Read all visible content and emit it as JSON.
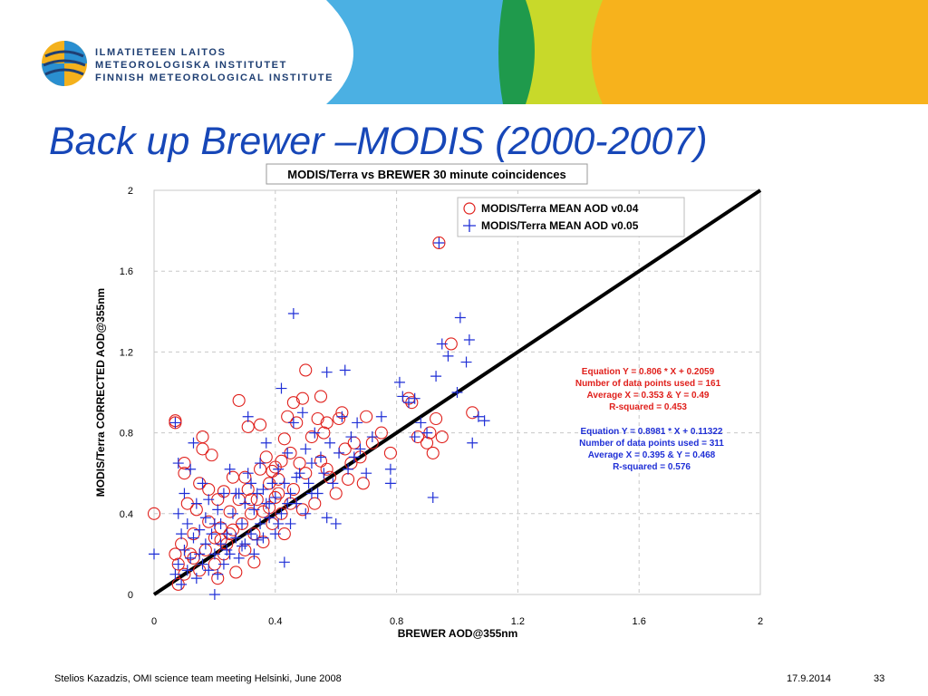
{
  "logo": {
    "line1": "ILMATIETEEN LAITOS",
    "line2": "METEOROLOGISKA INSTITUTET",
    "line3": "FINNISH METEOROLOGICAL INSTITUTE"
  },
  "slide": {
    "title": "Back up Brewer –MODIS (2000-2007)"
  },
  "colors": {
    "red": "#e0201c",
    "blue": "#1f2fd6",
    "title_blue": "#1747b8"
  },
  "footer": {
    "left": "Stelios Kazadzis, OMI science team meeting Helsinki, June 2008",
    "date": "17.9.2014",
    "page": "33"
  },
  "chart_data": {
    "type": "scatter",
    "title": "MODIS/Terra vs BREWER 30 minute coincidences",
    "xlabel": "BREWER AOD@355nm",
    "ylabel": "MODIS/Terra CORRECTED AOD@355nm",
    "xlim": [
      0,
      2
    ],
    "ylim": [
      0,
      2
    ],
    "xticks": [
      "0",
      "0.4",
      "0.8",
      "1.2",
      "1.6",
      "2"
    ],
    "yticks": [
      "0",
      "0.4",
      "0.8",
      "1.2",
      "1.6",
      "2"
    ],
    "grid": true,
    "legend_position": "top-right",
    "reference_line": {
      "x": [
        0,
        2
      ],
      "y": [
        0,
        2
      ]
    },
    "annotations": {
      "red": [
        "Equation Y = 0.806 * X + 0.2059",
        "Number of data points used = 161",
        "Average X = 0.353 & Y = 0.49",
        "R-squared = 0.453"
      ],
      "blue": [
        "Equation Y = 0.8981 * X + 0.11322",
        "Number of data points used = 311",
        "Average X = 0.395 & Y = 0.468",
        "R-squared = 0.576"
      ]
    },
    "series": [
      {
        "name": "MODIS/Terra MEAN AOD v0.04",
        "marker": "circle",
        "color": "#e0201c",
        "points": [
          [
            0.0,
            0.4
          ],
          [
            0.07,
            0.86
          ],
          [
            0.07,
            0.85
          ],
          [
            0.07,
            0.2
          ],
          [
            0.08,
            0.05
          ],
          [
            0.08,
            0.15
          ],
          [
            0.09,
            0.25
          ],
          [
            0.1,
            0.6
          ],
          [
            0.1,
            0.65
          ],
          [
            0.1,
            0.1
          ],
          [
            0.11,
            0.45
          ],
          [
            0.12,
            0.2
          ],
          [
            0.13,
            0.18
          ],
          [
            0.13,
            0.3
          ],
          [
            0.14,
            0.42
          ],
          [
            0.15,
            0.55
          ],
          [
            0.15,
            0.12
          ],
          [
            0.16,
            0.78
          ],
          [
            0.16,
            0.72
          ],
          [
            0.17,
            0.22
          ],
          [
            0.18,
            0.36
          ],
          [
            0.18,
            0.52
          ],
          [
            0.19,
            0.69
          ],
          [
            0.2,
            0.15
          ],
          [
            0.2,
            0.28
          ],
          [
            0.21,
            0.47
          ],
          [
            0.21,
            0.08
          ],
          [
            0.22,
            0.33
          ],
          [
            0.23,
            0.51
          ],
          [
            0.23,
            0.2
          ],
          [
            0.24,
            0.25
          ],
          [
            0.25,
            0.41
          ],
          [
            0.25,
            0.3
          ],
          [
            0.26,
            0.58
          ],
          [
            0.27,
            0.11
          ],
          [
            0.28,
            0.96
          ],
          [
            0.28,
            0.47
          ],
          [
            0.29,
            0.35
          ],
          [
            0.3,
            0.22
          ],
          [
            0.3,
            0.58
          ],
          [
            0.31,
            0.83
          ],
          [
            0.31,
            0.52
          ],
          [
            0.32,
            0.4
          ],
          [
            0.33,
            0.16
          ],
          [
            0.33,
            0.3
          ],
          [
            0.34,
            0.47
          ],
          [
            0.35,
            0.62
          ],
          [
            0.35,
            0.84
          ],
          [
            0.36,
            0.26
          ],
          [
            0.37,
            0.68
          ],
          [
            0.38,
            0.43
          ],
          [
            0.38,
            0.55
          ],
          [
            0.39,
            0.35
          ],
          [
            0.4,
            0.63
          ],
          [
            0.4,
            0.48
          ],
          [
            0.41,
            0.5
          ],
          [
            0.41,
            0.57
          ],
          [
            0.42,
            0.4
          ],
          [
            0.43,
            0.77
          ],
          [
            0.43,
            0.3
          ],
          [
            0.44,
            0.88
          ],
          [
            0.45,
            0.7
          ],
          [
            0.45,
            0.45
          ],
          [
            0.46,
            0.95
          ],
          [
            0.46,
            0.52
          ],
          [
            0.47,
            0.85
          ],
          [
            0.48,
            0.65
          ],
          [
            0.49,
            0.97
          ],
          [
            0.49,
            0.42
          ],
          [
            0.5,
            1.11
          ],
          [
            0.5,
            0.6
          ],
          [
            0.52,
            0.78
          ],
          [
            0.53,
            0.45
          ],
          [
            0.54,
            0.87
          ],
          [
            0.55,
            0.98
          ],
          [
            0.55,
            0.66
          ],
          [
            0.56,
            0.8
          ],
          [
            0.57,
            0.62
          ],
          [
            0.57,
            0.85
          ],
          [
            0.58,
            0.58
          ],
          [
            0.6,
            0.5
          ],
          [
            0.61,
            0.87
          ],
          [
            0.62,
            0.9
          ],
          [
            0.63,
            0.72
          ],
          [
            0.64,
            0.57
          ],
          [
            0.65,
            0.65
          ],
          [
            0.66,
            0.75
          ],
          [
            0.68,
            0.68
          ],
          [
            0.69,
            0.55
          ],
          [
            0.7,
            0.88
          ],
          [
            0.72,
            0.75
          ],
          [
            0.75,
            0.8
          ],
          [
            0.78,
            0.7
          ],
          [
            0.84,
            0.97
          ],
          [
            0.85,
            0.95
          ],
          [
            0.87,
            0.78
          ],
          [
            0.9,
            0.75
          ],
          [
            0.91,
            0.8
          ],
          [
            0.92,
            0.7
          ],
          [
            0.93,
            0.87
          ],
          [
            0.94,
            1.74
          ],
          [
            0.95,
            0.78
          ],
          [
            0.98,
            1.24
          ],
          [
            1.05,
            0.9
          ],
          [
            0.22,
            0.27
          ],
          [
            0.26,
            0.32
          ],
          [
            0.32,
            0.47
          ],
          [
            0.36,
            0.41
          ],
          [
            0.39,
            0.61
          ],
          [
            0.42,
            0.66
          ]
        ]
      },
      {
        "name": "MODIS/Terra MEAN AOD v0.05",
        "marker": "plus",
        "color": "#1f2fd6",
        "points": [
          [
            0.0,
            0.2
          ],
          [
            0.07,
            0.85
          ],
          [
            0.07,
            0.1
          ],
          [
            0.08,
            0.65
          ],
          [
            0.08,
            0.4
          ],
          [
            0.08,
            0.15
          ],
          [
            0.09,
            0.05
          ],
          [
            0.09,
            0.3
          ],
          [
            0.1,
            0.5
          ],
          [
            0.1,
            0.22
          ],
          [
            0.11,
            0.35
          ],
          [
            0.11,
            0.12
          ],
          [
            0.12,
            0.18
          ],
          [
            0.12,
            0.62
          ],
          [
            0.13,
            0.28
          ],
          [
            0.13,
            0.75
          ],
          [
            0.14,
            0.45
          ],
          [
            0.14,
            0.08
          ],
          [
            0.15,
            0.32
          ],
          [
            0.15,
            0.2
          ],
          [
            0.16,
            0.55
          ],
          [
            0.16,
            0.15
          ],
          [
            0.17,
            0.38
          ],
          [
            0.17,
            0.25
          ],
          [
            0.18,
            0.12
          ],
          [
            0.18,
            0.47
          ],
          [
            0.19,
            0.3
          ],
          [
            0.2,
            0.0
          ],
          [
            0.2,
            0.2
          ],
          [
            0.21,
            0.42
          ],
          [
            0.21,
            0.1
          ],
          [
            0.22,
            0.35
          ],
          [
            0.22,
            0.25
          ],
          [
            0.23,
            0.5
          ],
          [
            0.23,
            0.15
          ],
          [
            0.24,
            0.3
          ],
          [
            0.25,
            0.62
          ],
          [
            0.25,
            0.2
          ],
          [
            0.26,
            0.4
          ],
          [
            0.27,
            0.28
          ],
          [
            0.28,
            0.5
          ],
          [
            0.28,
            0.18
          ],
          [
            0.29,
            0.35
          ],
          [
            0.3,
            0.45
          ],
          [
            0.3,
            0.25
          ],
          [
            0.31,
            0.88
          ],
          [
            0.31,
            0.6
          ],
          [
            0.32,
            0.3
          ],
          [
            0.33,
            0.42
          ],
          [
            0.33,
            0.2
          ],
          [
            0.34,
            0.5
          ],
          [
            0.35,
            0.35
          ],
          [
            0.35,
            0.65
          ],
          [
            0.36,
            0.28
          ],
          [
            0.37,
            0.45
          ],
          [
            0.37,
            0.75
          ],
          [
            0.38,
            0.38
          ],
          [
            0.39,
            0.55
          ],
          [
            0.4,
            0.3
          ],
          [
            0.4,
            0.48
          ],
          [
            0.41,
            0.62
          ],
          [
            0.42,
            1.02
          ],
          [
            0.42,
            0.4
          ],
          [
            0.43,
            0.16
          ],
          [
            0.43,
            0.55
          ],
          [
            0.44,
            0.7
          ],
          [
            0.45,
            0.35
          ],
          [
            0.45,
            0.5
          ],
          [
            0.46,
            1.39
          ],
          [
            0.46,
            0.85
          ],
          [
            0.47,
            0.45
          ],
          [
            0.48,
            0.6
          ],
          [
            0.49,
            0.9
          ],
          [
            0.5,
            0.4
          ],
          [
            0.5,
            0.72
          ],
          [
            0.51,
            0.55
          ],
          [
            0.52,
            0.65
          ],
          [
            0.53,
            0.8
          ],
          [
            0.54,
            0.5
          ],
          [
            0.55,
            0.68
          ],
          [
            0.56,
            0.6
          ],
          [
            0.57,
            0.38
          ],
          [
            0.57,
            1.1
          ],
          [
            0.58,
            0.75
          ],
          [
            0.59,
            0.55
          ],
          [
            0.6,
            0.35
          ],
          [
            0.61,
            0.7
          ],
          [
            0.62,
            0.88
          ],
          [
            0.63,
            1.11
          ],
          [
            0.64,
            0.62
          ],
          [
            0.65,
            0.78
          ],
          [
            0.66,
            0.68
          ],
          [
            0.67,
            0.85
          ],
          [
            0.68,
            0.72
          ],
          [
            0.7,
            0.6
          ],
          [
            0.72,
            0.78
          ],
          [
            0.75,
            0.88
          ],
          [
            0.78,
            0.62
          ],
          [
            0.78,
            0.55
          ],
          [
            0.81,
            1.05
          ],
          [
            0.82,
            0.98
          ],
          [
            0.84,
            0.95
          ],
          [
            0.86,
            0.97
          ],
          [
            0.86,
            0.78
          ],
          [
            0.88,
            0.85
          ],
          [
            0.9,
            0.8
          ],
          [
            0.92,
            0.48
          ],
          [
            0.93,
            1.08
          ],
          [
            0.94,
            1.74
          ],
          [
            0.95,
            1.24
          ],
          [
            0.97,
            1.18
          ],
          [
            1.0,
            1.0
          ],
          [
            1.01,
            1.37
          ],
          [
            1.03,
            1.15
          ],
          [
            1.04,
            1.26
          ],
          [
            1.05,
            0.75
          ],
          [
            1.07,
            0.88
          ],
          [
            1.09,
            0.86
          ],
          [
            0.2,
            0.35
          ],
          [
            0.24,
            0.22
          ],
          [
            0.27,
            0.5
          ],
          [
            0.29,
            0.24
          ],
          [
            0.32,
            0.55
          ],
          [
            0.34,
            0.27
          ],
          [
            0.36,
            0.52
          ],
          [
            0.38,
            0.45
          ],
          [
            0.41,
            0.35
          ],
          [
            0.44,
            0.45
          ],
          [
            0.47,
            0.58
          ],
          [
            0.52,
            0.5
          ]
        ]
      }
    ]
  }
}
